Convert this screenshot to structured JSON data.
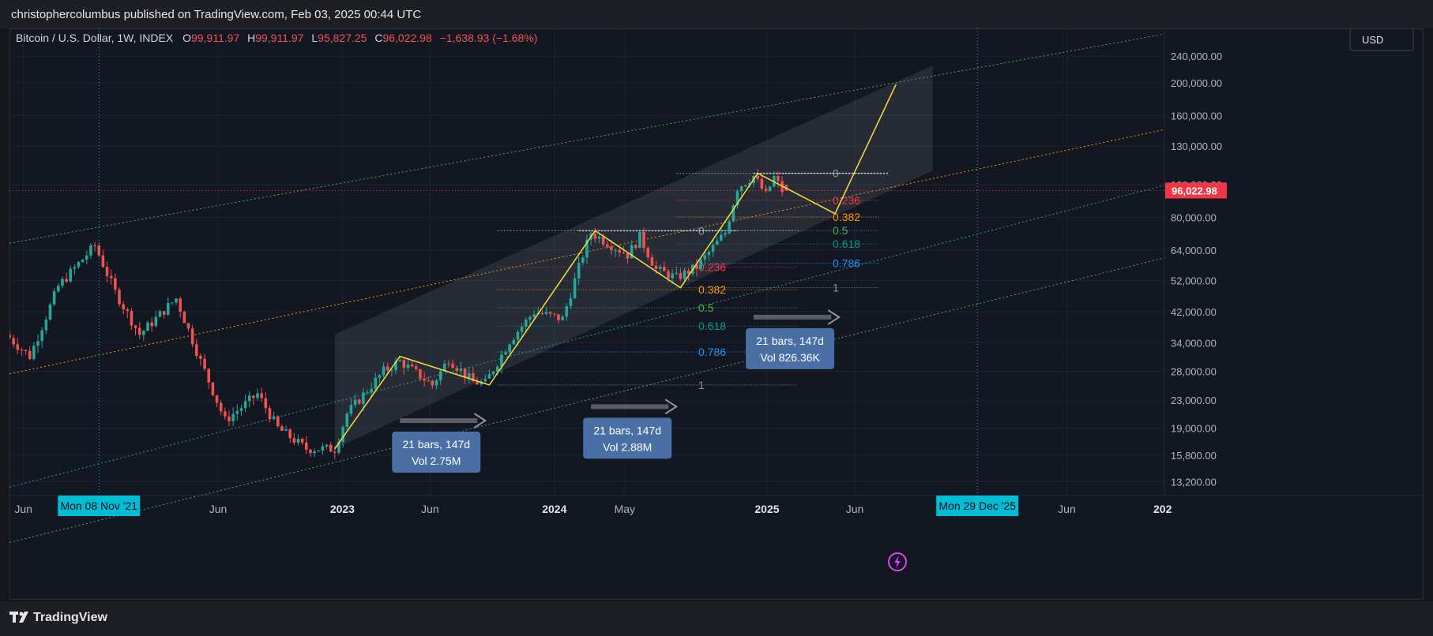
{
  "header": {
    "publisher_line": "christophercolumbus published on TradingView.com, Feb 03, 2025 00:44 UTC"
  },
  "footer": {
    "brand": "TradingView"
  },
  "colors": {
    "up": "#26a69a",
    "down": "#ef5350",
    "background": "#131722",
    "price_badge": "#f23645",
    "date_badge": "#00bcd4",
    "box": "#4a6fa5",
    "pattern_line": "#f3e03b",
    "upper_green_line": "#4caf50",
    "orange_trend_line": "#ff9800",
    "teal_trend_line": "#26a69a"
  },
  "legend": {
    "symbol": "Bitcoin / U.S. Dollar, 1W, INDEX",
    "open_label": "O",
    "open": "99,911.97",
    "high_label": "H",
    "high": "99,911.97",
    "low_label": "L",
    "low": "95,827.25",
    "close_label": "C",
    "close": "96,022.98",
    "change": "−1,638.93 (−1.68%)"
  },
  "currency_button": "USD",
  "current_price": "96,022.98",
  "price_axis": {
    "ticks": [
      "240,000.00",
      "200,000.00",
      "160,000.00",
      "130,000.00",
      "100,000.00",
      "80,000.00",
      "64,000.00",
      "52,000.00",
      "42,000.00",
      "34,000.00",
      "28,000.00",
      "23,000.00",
      "19,000.00",
      "15,800.00",
      "13,200.00"
    ]
  },
  "time_axis": {
    "labels": [
      {
        "text": "Jun",
        "bold": false
      },
      {
        "text": "Jun",
        "bold": false
      },
      {
        "text": "2023",
        "bold": true
      },
      {
        "text": "Jun",
        "bold": false
      },
      {
        "text": "2024",
        "bold": true
      },
      {
        "text": "May",
        "bold": false
      },
      {
        "text": "2025",
        "bold": true
      },
      {
        "text": "Jun",
        "bold": false
      },
      {
        "text": "Jun",
        "bold": false
      },
      {
        "text": "202",
        "bold": true
      }
    ],
    "cursor_left": "Mon 08 Nov '21",
    "cursor_right": "Mon 29 Dec '25"
  },
  "fib_labels": {
    "upper": [
      "0",
      "0.236",
      "0.382",
      "0.5",
      "0.618",
      "0.786",
      "1"
    ],
    "lower": [
      "0",
      "0.236",
      "0.382",
      "0.5",
      "0.618",
      "0.786",
      "1"
    ]
  },
  "measure_boxes": [
    {
      "bars": "21 bars, 147d",
      "vol": "Vol 2.75M"
    },
    {
      "bars": "21 bars, 147d",
      "vol": "Vol 2.88M"
    },
    {
      "bars": "21 bars, 147d",
      "vol": "Vol 826.36K"
    }
  ],
  "chart_data": {
    "type": "candlestick",
    "title": "Bitcoin / U.S. Dollar, 1W, INDEX",
    "y_scale": "log",
    "ylim": [
      12000,
      290000
    ],
    "xlim": [
      "2021-06-07",
      "2026-11-16"
    ],
    "grid": true,
    "last": {
      "open": 99911.97,
      "high": 99911.97,
      "low": 95827.25,
      "close": 96022.98,
      "change": -1638.93,
      "change_pct": -1.68
    },
    "price_path": [
      [
        "2021-06-07",
        36000
      ],
      [
        "2021-07-19",
        31000
      ],
      [
        "2021-09-06",
        50000
      ],
      [
        "2021-11-08",
        66000
      ],
      [
        "2021-12-13",
        48000
      ],
      [
        "2022-01-24",
        36000
      ],
      [
        "2022-03-28",
        46000
      ],
      [
        "2022-05-09",
        30000
      ],
      [
        "2022-06-20",
        20000
      ],
      [
        "2022-08-15",
        24000
      ],
      [
        "2022-09-19",
        19000
      ],
      [
        "2022-11-07",
        16500
      ],
      [
        "2022-12-26",
        16500
      ],
      [
        "2023-01-16",
        21000
      ],
      [
        "2023-03-20",
        28000
      ],
      [
        "2023-04-17",
        30000
      ],
      [
        "2023-06-12",
        25500
      ],
      [
        "2023-07-10",
        30500
      ],
      [
        "2023-08-21",
        26000
      ],
      [
        "2023-09-11",
        25800
      ],
      [
        "2023-10-23",
        34500
      ],
      [
        "2023-12-04",
        42000
      ],
      [
        "2024-01-22",
        40000
      ],
      [
        "2024-02-26",
        62000
      ],
      [
        "2024-03-11",
        72000
      ],
      [
        "2024-05-13",
        62000
      ],
      [
        "2024-06-03",
        70000
      ],
      [
        "2024-07-01",
        56000
      ],
      [
        "2024-08-05",
        53000
      ],
      [
        "2024-09-09",
        57000
      ],
      [
        "2024-10-28",
        72000
      ],
      [
        "2024-11-18",
        98000
      ],
      [
        "2024-12-16",
        106000
      ],
      [
        "2025-01-06",
        93000
      ],
      [
        "2025-01-20",
        105000
      ],
      [
        "2025-02-03",
        96022.98
      ]
    ],
    "pattern_projection": [
      [
        "2022-12-19",
        16500
      ],
      [
        "2023-04-10",
        31000
      ],
      [
        "2023-09-11",
        25500
      ],
      [
        "2024-03-11",
        73000
      ],
      [
        "2024-08-05",
        49500
      ],
      [
        "2024-12-16",
        108000
      ],
      [
        "2025-04-28",
        82000
      ],
      [
        "2025-08-11",
        198000
      ]
    ],
    "fib_retracement_upper": {
      "from": 108000,
      "to": 49500,
      "levels": [
        0,
        0.236,
        0.382,
        0.5,
        0.618,
        0.786,
        1
      ]
    },
    "fib_retracement_lower": {
      "from": 73000,
      "to": 25500,
      "levels": [
        0,
        0.236,
        0.382,
        0.5,
        0.618,
        0.786,
        1
      ]
    },
    "measures": [
      {
        "bars": 21,
        "days": 147,
        "vol": "2.75M",
        "start": "2023-04-10",
        "price": 20000
      },
      {
        "bars": 21,
        "days": 147,
        "vol": "2.88M",
        "start": "2024-03-04",
        "price": 22000
      },
      {
        "bars": 21,
        "days": 147,
        "vol": "826.36K",
        "start": "2024-12-09",
        "price": 40500
      }
    ],
    "markers": {
      "cursor_left_date": "2021-11-08",
      "cursor_right_date": "2025-12-29"
    }
  }
}
